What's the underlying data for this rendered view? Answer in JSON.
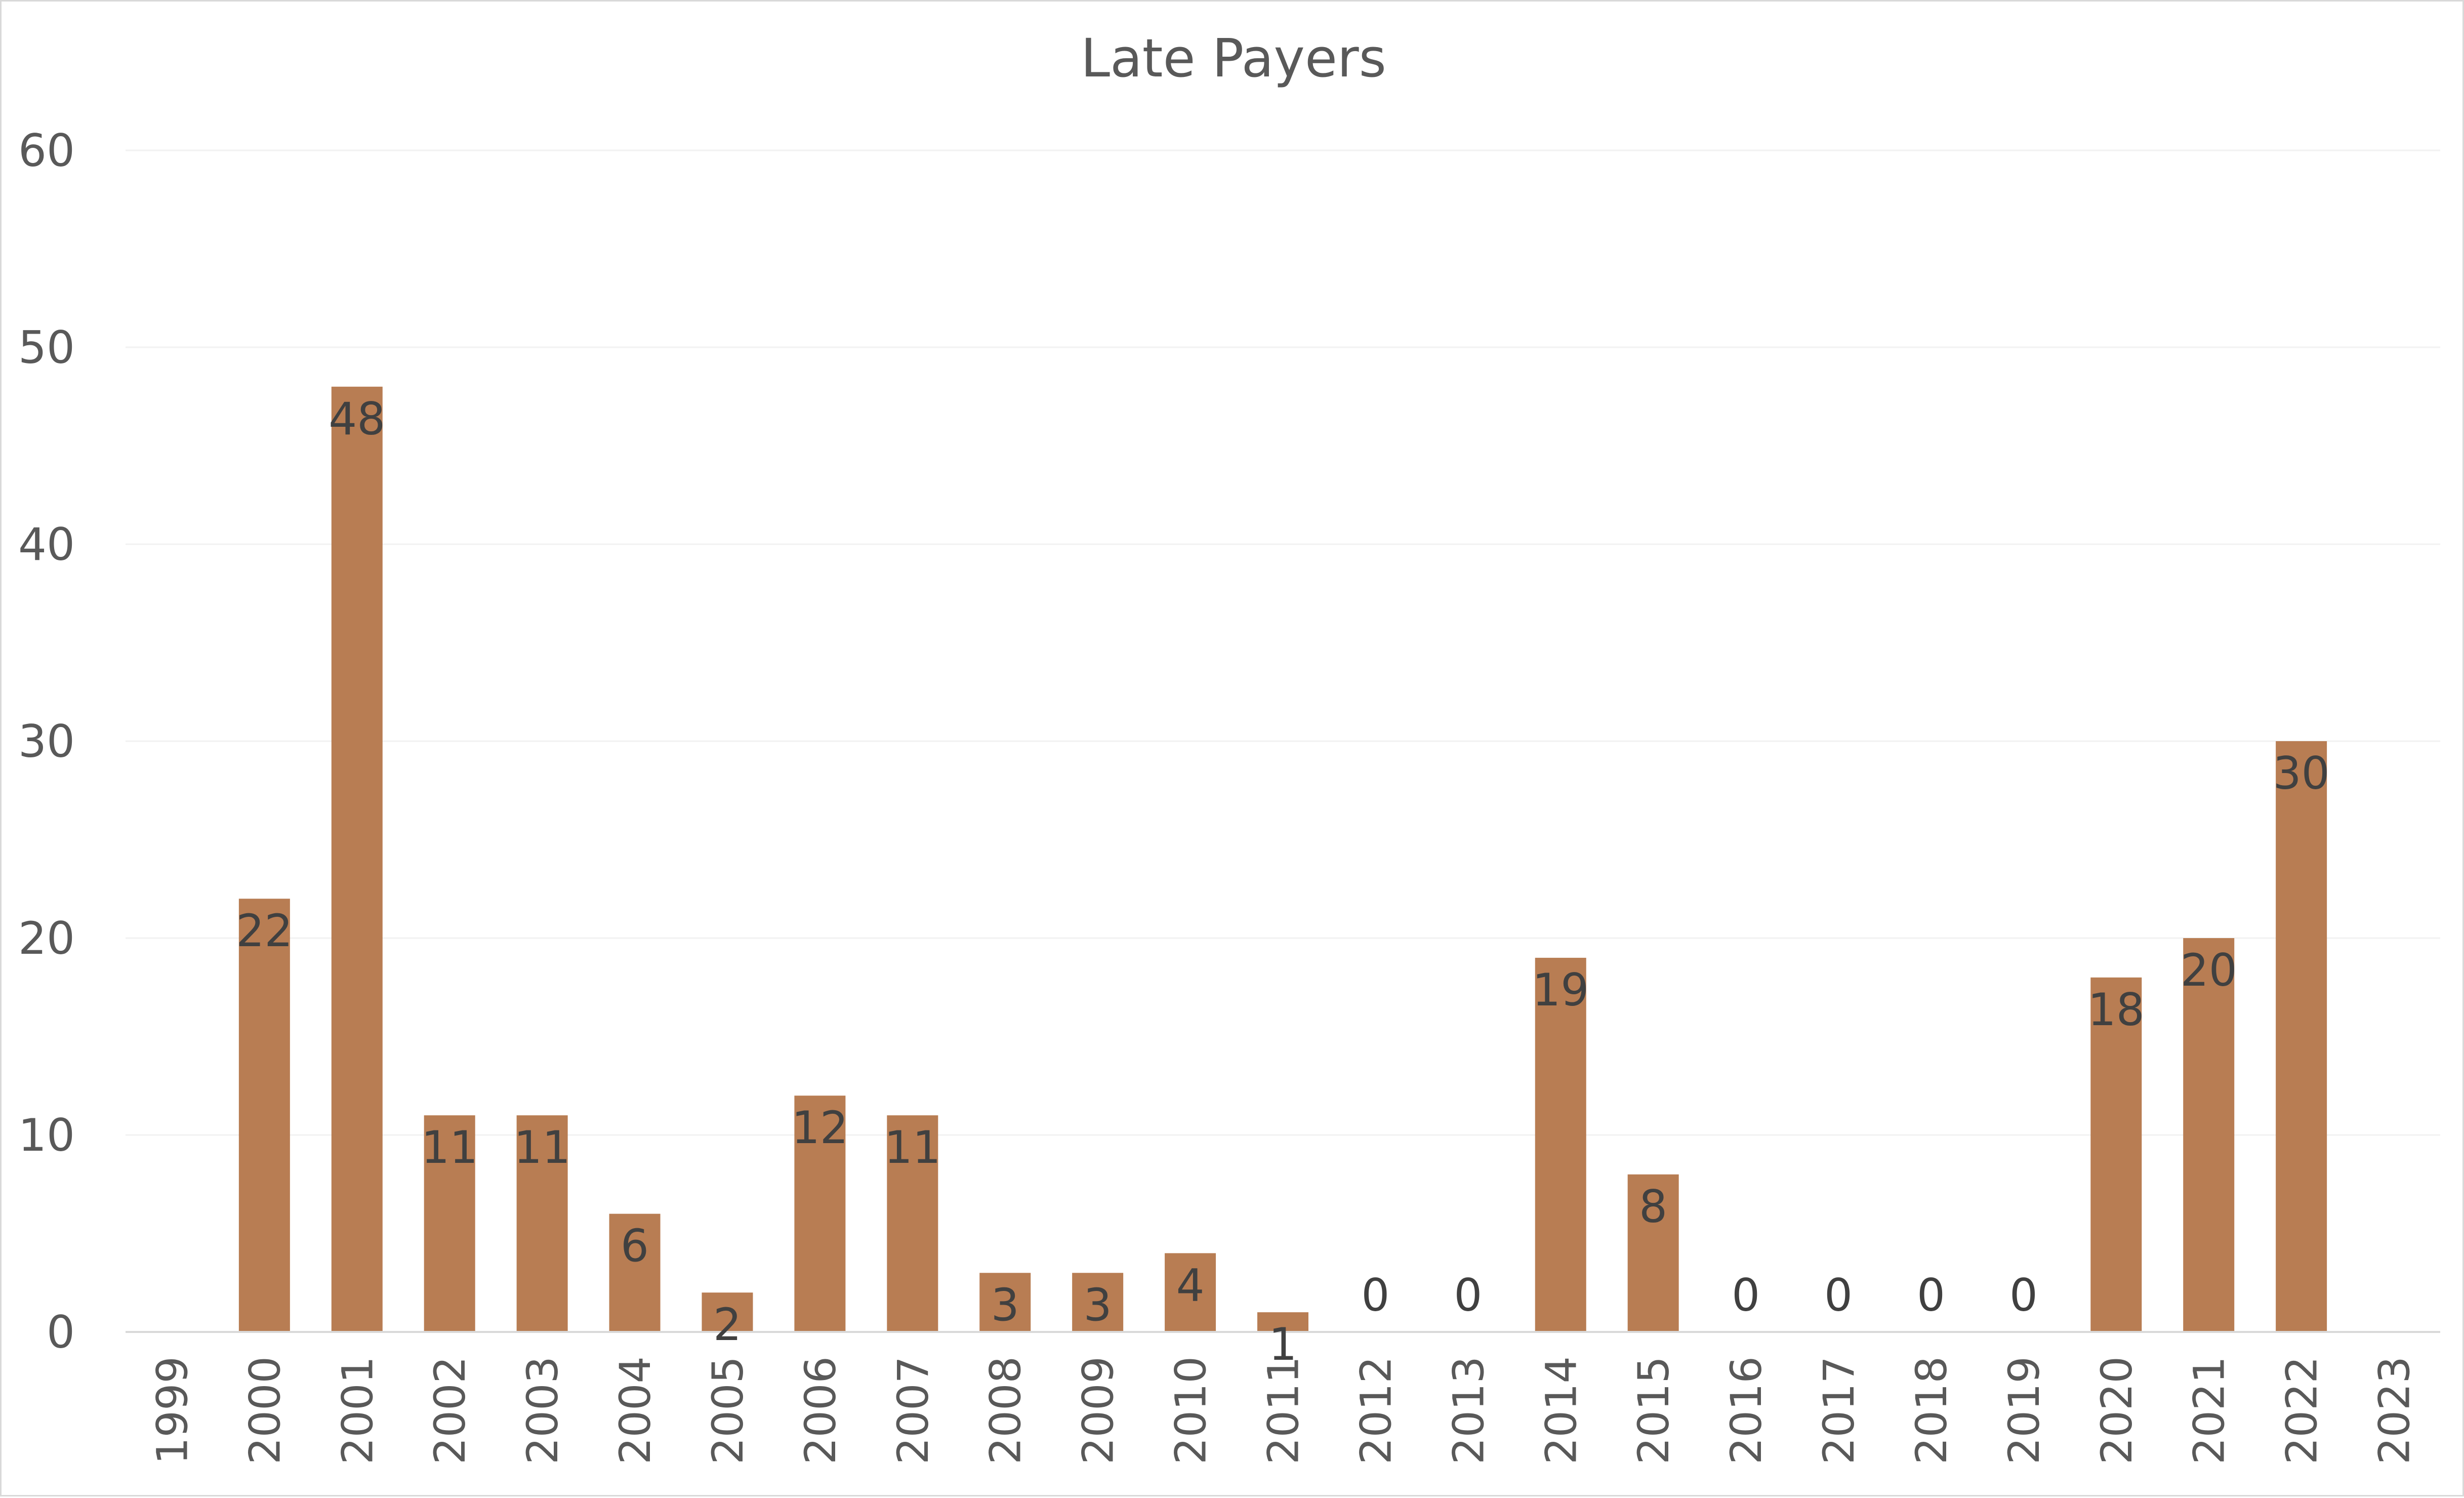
{
  "chart_data": {
    "type": "bar",
    "title": "Late Payers",
    "xlabel": "",
    "ylabel": "",
    "categories": [
      "1999",
      "2000",
      "2001",
      "2002",
      "2003",
      "2004",
      "2005",
      "2006",
      "2007",
      "2008",
      "2009",
      "2010",
      "2011",
      "2012",
      "2013",
      "2014",
      "2015",
      "2016",
      "2017",
      "2018",
      "2019",
      "2020",
      "2021",
      "2022",
      "2023"
    ],
    "values": [
      null,
      22,
      48,
      11,
      11,
      6,
      2,
      12,
      11,
      3,
      3,
      4,
      1,
      0,
      0,
      19,
      8,
      0,
      0,
      0,
      0,
      18,
      20,
      30,
      null
    ],
    "data_labels": [
      "",
      "22",
      "48",
      "11",
      "11",
      "6",
      "2",
      "12",
      "11",
      "3",
      "3",
      "4",
      "1",
      "0",
      "0",
      "19",
      "8",
      "0",
      "0",
      "0",
      "0",
      "18",
      "20",
      "30",
      ""
    ],
    "ylim": [
      0,
      60
    ],
    "yticks": [
      0,
      10,
      20,
      30,
      40,
      50,
      60
    ],
    "ytick_labels": [
      "0",
      "10",
      "20",
      "30",
      "40",
      "50",
      "60"
    ],
    "grid": true,
    "legend": "none",
    "bar_color": "#b87d53",
    "gridline_color": "#f2f2f2",
    "axis_color": "#d9d9d9",
    "text_color": "#595959",
    "label_color": "#404040"
  }
}
